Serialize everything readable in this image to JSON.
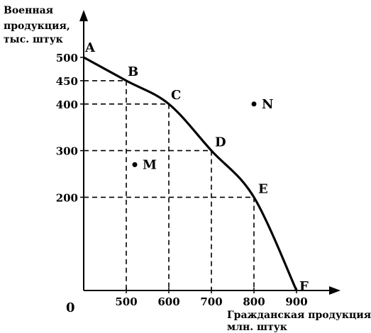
{
  "chart_data": {
    "type": "line",
    "title": "",
    "ylabel_lines": [
      "Военная",
      "продукция,",
      "тыс. штук"
    ],
    "xlabel_lines": [
      "Гражданская продукция,",
      "млн. штук"
    ],
    "origin_label": "0",
    "x_ticks": [
      "500",
      "600",
      "700",
      "800",
      "900"
    ],
    "y_ticks": [
      "500",
      "450",
      "400",
      "300",
      "200"
    ],
    "xlim": [
      400,
      980
    ],
    "ylim": [
      0,
      560
    ],
    "grid": false,
    "series": [
      {
        "points": [
          {
            "label": "A",
            "x": 400,
            "y": 500
          },
          {
            "label": "B",
            "x": 500,
            "y": 450
          },
          {
            "label": "C",
            "x": 600,
            "y": 400
          },
          {
            "label": "D",
            "x": 700,
            "y": 300
          },
          {
            "label": "E",
            "x": 800,
            "y": 200
          },
          {
            "label": "F",
            "x": 900,
            "y": 0
          }
        ]
      }
    ],
    "dashed_guides": [
      "B",
      "C",
      "D",
      "E"
    ],
    "off_curve_points": [
      {
        "label": "M",
        "x": 520,
        "y": 270
      },
      {
        "label": "N",
        "x": 800,
        "y": 400
      }
    ]
  }
}
